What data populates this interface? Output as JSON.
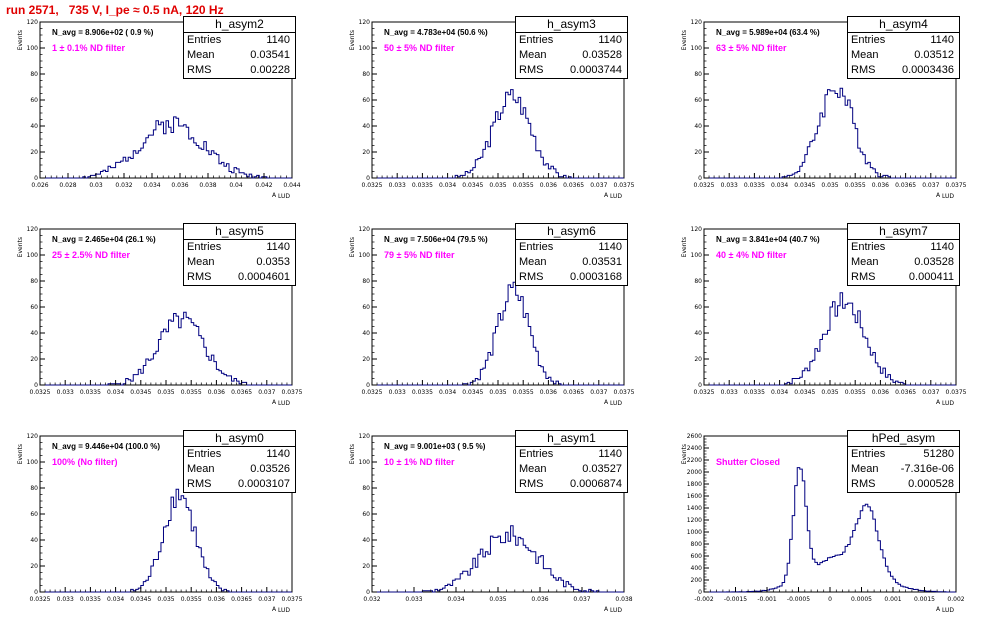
{
  "title": "run 2571,   735 V, I_pe ≈ 0.5 nA, 120 Hz",
  "axis": {
    "ylabel": "Events",
    "xlabel": "A",
    "xlabel_sub": "LUD"
  },
  "chart_data": [
    {
      "type": "bar",
      "name": "h_asym2",
      "entries": "1140",
      "mean": "0.03541",
      "rms": "0.00228",
      "navg": "N_avg = 8.906e+02 ( 0.9 %)",
      "filter": "1 ± 0.1% ND filter",
      "xlim": [
        0.026,
        0.044
      ],
      "ylim": [
        0,
        120
      ],
      "xticks": [
        "0.026",
        "0.028",
        "0.03",
        "0.032",
        "0.034",
        "0.036",
        "0.038",
        "0.04",
        "0.042",
        "0.044"
      ],
      "yticks": [
        "0",
        "20",
        "40",
        "60",
        "80",
        "100",
        "120"
      ],
      "dist": {
        "peaks": [
          {
            "mu": 0.03541,
            "sigma": 0.00228,
            "peak": 42
          }
        ],
        "seed": 2
      }
    },
    {
      "type": "bar",
      "name": "h_asym3",
      "entries": "1140",
      "mean": "0.03528",
      "rms": "0.0003744",
      "navg": "N_avg = 4.783e+04 (50.6 %)",
      "filter": "50 ± 5% ND filter",
      "xlim": [
        0.0325,
        0.0375
      ],
      "ylim": [
        0,
        120
      ],
      "xticks": [
        "0.0325",
        "0.033",
        "0.0335",
        "0.034",
        "0.0345",
        "0.035",
        "0.0355",
        "0.036",
        "0.0365",
        "0.037",
        "0.0375"
      ],
      "yticks": [
        "0",
        "20",
        "40",
        "60",
        "80",
        "100",
        "120"
      ],
      "dist": {
        "peaks": [
          {
            "mu": 0.03528,
            "sigma": 0.000374,
            "peak": 63
          }
        ],
        "seed": 3
      }
    },
    {
      "type": "bar",
      "name": "h_asym4",
      "entries": "1140",
      "mean": "0.03512",
      "rms": "0.0003436",
      "navg": "N_avg = 5.989e+04 (63.4 %)",
      "filter": "63 ± 5% ND filter",
      "xlim": [
        0.0325,
        0.0375
      ],
      "ylim": [
        0,
        120
      ],
      "xticks": [
        "0.0325",
        "0.033",
        "0.0335",
        "0.034",
        "0.0345",
        "0.035",
        "0.0355",
        "0.036",
        "0.0365",
        "0.037",
        "0.0375"
      ],
      "yticks": [
        "0",
        "20",
        "40",
        "60",
        "80",
        "100",
        "120"
      ],
      "dist": {
        "peaks": [
          {
            "mu": 0.03512,
            "sigma": 0.000344,
            "peak": 70
          }
        ],
        "seed": 4
      }
    },
    {
      "type": "bar",
      "name": "h_asym5",
      "entries": "1140",
      "mean": "0.0353",
      "rms": "0.0004601",
      "navg": "N_avg = 2.465e+04 (26.1 %)",
      "filter": "25 ± 2.5% ND filter",
      "xlim": [
        0.0325,
        0.0375
      ],
      "ylim": [
        0,
        120
      ],
      "xticks": [
        "0.0325",
        "0.033",
        "0.0335",
        "0.034",
        "0.0345",
        "0.035",
        "0.0355",
        "0.036",
        "0.0365",
        "0.037",
        "0.0375"
      ],
      "yticks": [
        "0",
        "20",
        "40",
        "60",
        "80",
        "100",
        "120"
      ],
      "dist": {
        "peaks": [
          {
            "mu": 0.0353,
            "sigma": 0.00046,
            "peak": 50
          }
        ],
        "seed": 5
      }
    },
    {
      "type": "bar",
      "name": "h_asym6",
      "entries": "1140",
      "mean": "0.03531",
      "rms": "0.0003168",
      "navg": "N_avg = 7.506e+04 (79.5 %)",
      "filter": "79 ± 5% ND filter",
      "xlim": [
        0.0325,
        0.0375
      ],
      "ylim": [
        0,
        120
      ],
      "xticks": [
        "0.0325",
        "0.033",
        "0.0335",
        "0.034",
        "0.0345",
        "0.035",
        "0.0355",
        "0.036",
        "0.0365",
        "0.037",
        "0.0375"
      ],
      "yticks": [
        "0",
        "20",
        "40",
        "60",
        "80",
        "100",
        "120"
      ],
      "dist": {
        "peaks": [
          {
            "mu": 0.03531,
            "sigma": 0.000317,
            "peak": 72
          }
        ],
        "seed": 6
      }
    },
    {
      "type": "bar",
      "name": "h_asym7",
      "entries": "1140",
      "mean": "0.03528",
      "rms": "0.000411",
      "navg": "N_avg = 3.841e+04 (40.7 %)",
      "filter": "40 ± 4% ND filter",
      "xlim": [
        0.0325,
        0.0375
      ],
      "ylim": [
        0,
        120
      ],
      "xticks": [
        "0.0325",
        "0.033",
        "0.0335",
        "0.034",
        "0.0345",
        "0.035",
        "0.0355",
        "0.036",
        "0.0365",
        "0.037",
        "0.0375"
      ],
      "yticks": [
        "0",
        "20",
        "40",
        "60",
        "80",
        "100",
        "120"
      ],
      "dist": {
        "peaks": [
          {
            "mu": 0.03528,
            "sigma": 0.000411,
            "peak": 64
          }
        ],
        "seed": 7
      }
    },
    {
      "type": "bar",
      "name": "h_asym0",
      "entries": "1140",
      "mean": "0.03526",
      "rms": "0.0003107",
      "navg": "N_avg = 9.446e+04 (100.0 %)",
      "filter": "100% (No filter)",
      "xlim": [
        0.0325,
        0.0375
      ],
      "ylim": [
        0,
        120
      ],
      "xticks": [
        "0.0325",
        "0.033",
        "0.0335",
        "0.034",
        "0.0345",
        "0.035",
        "0.0355",
        "0.036",
        "0.0365",
        "0.037",
        "0.0375"
      ],
      "yticks": [
        "0",
        "20",
        "40",
        "60",
        "80",
        "100",
        "120"
      ],
      "dist": {
        "peaks": [
          {
            "mu": 0.03526,
            "sigma": 0.00031,
            "peak": 76
          }
        ],
        "seed": 8
      }
    },
    {
      "type": "bar",
      "name": "h_asym1",
      "entries": "1140",
      "mean": "0.03527",
      "rms": "0.0006874",
      "navg": "N_avg = 9.001e+03 ( 9.5 %)",
      "filter": "10 ± 1% ND filter",
      "xlim": [
        0.032,
        0.038
      ],
      "ylim": [
        0,
        120
      ],
      "xticks": [
        "0.032",
        "0.033",
        "0.034",
        "0.035",
        "0.036",
        "0.037",
        "0.038"
      ],
      "yticks": [
        "0",
        "20",
        "40",
        "60",
        "80",
        "100",
        "120"
      ],
      "dist": {
        "peaks": [
          {
            "mu": 0.03527,
            "sigma": 0.000687,
            "peak": 44
          }
        ],
        "seed": 9
      }
    },
    {
      "type": "bar",
      "name": "hPed_asym",
      "entries": "51280",
      "mean": "-7.316e-06",
      "rms": "0.000528",
      "navg": "",
      "filter": "Shutter Closed",
      "xlim": [
        -0.002,
        0.002
      ],
      "ylim": [
        0,
        2600
      ],
      "xticks": [
        "-0.002",
        "-0.0015",
        "-0.001",
        "-0.0005",
        "0",
        "0.0005",
        "0.001",
        "0.0015",
        "0.002"
      ],
      "yticks": [
        "0",
        "200",
        "400",
        "600",
        "800",
        "1000",
        "1200",
        "1400",
        "1600",
        "1800",
        "2000",
        "2200",
        "2400",
        "2600"
      ],
      "dist": {
        "peaks": [
          {
            "mu": -0.00048,
            "sigma": 0.0001,
            "peak": 1850
          },
          {
            "mu": 0.0006,
            "sigma": 0.00017,
            "peak": 1000
          },
          {
            "mu": 0.0002,
            "sigma": 0.0005,
            "peak": 600
          }
        ],
        "seed": 10
      }
    }
  ]
}
